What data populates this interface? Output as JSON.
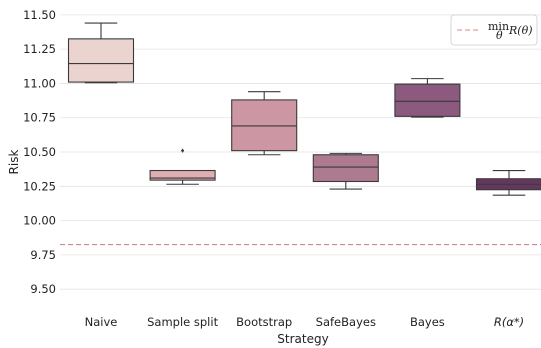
{
  "chart_data": {
    "type": "box",
    "xlabel": "Strategy",
    "ylabel": "Risk",
    "ylim": [
      9.37,
      11.55
    ],
    "yticks": [
      "9.50",
      "9.75",
      "10.00",
      "10.25",
      "10.50",
      "10.75",
      "11.00",
      "11.25",
      "11.50"
    ],
    "grid": "horizontal",
    "legend": {
      "placement": "top-right",
      "entries": [
        "min R(θ)"
      ]
    },
    "reference_line": {
      "label": "min R(θ)",
      "value": 9.825,
      "color": "#d08a8a"
    },
    "categories": [
      "Naive",
      "Sample split",
      "Bootstrap",
      "SafeBayes",
      "Bayes",
      "R(α*)"
    ],
    "boxes": [
      {
        "category": "Naive",
        "min": 11.005,
        "q1": 11.01,
        "median": 11.145,
        "q3": 11.325,
        "max": 11.44,
        "outliers": [],
        "color": "#ebd3cf"
      },
      {
        "category": "Sample split",
        "min": 10.265,
        "q1": 10.295,
        "median": 10.31,
        "q3": 10.365,
        "max": 10.365,
        "outliers": [
          10.51
        ],
        "color": "#dfaeb3"
      },
      {
        "category": "Bootstrap",
        "min": 10.48,
        "q1": 10.51,
        "median": 10.69,
        "q3": 10.88,
        "max": 10.94,
        "outliers": [],
        "color": "#cc96a2"
      },
      {
        "category": "SafeBayes",
        "min": 10.23,
        "q1": 10.285,
        "median": 10.39,
        "q3": 10.48,
        "max": 10.49,
        "outliers": [],
        "color": "#ad7a8f"
      },
      {
        "category": "Bayes",
        "min": 10.755,
        "q1": 10.76,
        "median": 10.87,
        "q3": 10.995,
        "max": 11.035,
        "outliers": [],
        "color": "#8b5a7e"
      },
      {
        "category": "R(α*)",
        "min": 10.185,
        "q1": 10.225,
        "median": 10.265,
        "q3": 10.305,
        "max": 10.365,
        "outliers": [],
        "color": "#64375f"
      }
    ]
  }
}
